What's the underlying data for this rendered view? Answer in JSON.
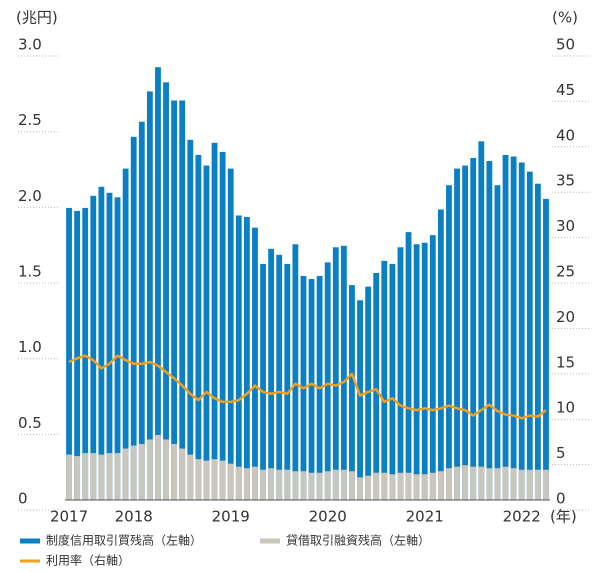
{
  "chart_data": {
    "type": "bar",
    "y_unit": "(兆円)",
    "y2_unit": "(%)",
    "x_unit": "(年)",
    "categories": [
      "2017",
      null,
      null,
      null,
      null,
      null,
      null,
      null,
      "2018",
      null,
      null,
      null,
      null,
      null,
      null,
      null,
      null,
      null,
      null,
      null,
      "2019",
      null,
      null,
      null,
      null,
      null,
      null,
      null,
      null,
      null,
      null,
      null,
      "2020",
      null,
      null,
      null,
      null,
      null,
      null,
      null,
      null,
      null,
      null,
      null,
      "2021",
      null,
      null,
      null,
      null,
      null,
      null,
      null,
      null,
      null,
      null,
      null,
      "2022",
      null,
      null,
      null
    ],
    "series": [
      {
        "name": "制度信用取引買残高（左軸）",
        "color": "#0b7fc3",
        "values": [
          1.93,
          1.91,
          1.93,
          2.01,
          2.07,
          2.03,
          2.0,
          2.19,
          2.4,
          2.5,
          2.7,
          2.86,
          2.76,
          2.64,
          2.64,
          2.38,
          2.28,
          2.21,
          2.36,
          2.3,
          2.19,
          1.88,
          1.87,
          1.8,
          1.56,
          1.66,
          1.62,
          1.56,
          1.69,
          1.48,
          1.46,
          1.48,
          1.57,
          1.67,
          1.68,
          1.42,
          1.32,
          1.41,
          1.5,
          1.58,
          1.56,
          1.67,
          1.77,
          1.69,
          1.7,
          1.75,
          1.92,
          2.08,
          2.19,
          2.21,
          2.26,
          2.37,
          2.24,
          2.08,
          2.28,
          2.27,
          2.23,
          2.17,
          2.09,
          1.99
        ]
      },
      {
        "name": "貸借取引融資残高（左軸）",
        "color": "#c9c7bd",
        "values": [
          0.3,
          0.29,
          0.31,
          0.31,
          0.3,
          0.31,
          0.31,
          0.34,
          0.36,
          0.37,
          0.4,
          0.43,
          0.4,
          0.37,
          0.34,
          0.3,
          0.27,
          0.26,
          0.27,
          0.26,
          0.24,
          0.22,
          0.21,
          0.22,
          0.2,
          0.21,
          0.2,
          0.2,
          0.19,
          0.19,
          0.18,
          0.18,
          0.19,
          0.2,
          0.2,
          0.19,
          0.15,
          0.16,
          0.18,
          0.18,
          0.17,
          0.18,
          0.18,
          0.17,
          0.17,
          0.18,
          0.19,
          0.21,
          0.22,
          0.23,
          0.22,
          0.22,
          0.21,
          0.21,
          0.22,
          0.21,
          0.2,
          0.2,
          0.2,
          0.2
        ]
      },
      {
        "name": "利用率（右軸）",
        "color": "#f0a020",
        "type": "line",
        "axis": "y2",
        "values": [
          15.2,
          15.6,
          15.9,
          15.4,
          14.5,
          15.0,
          15.9,
          15.4,
          15.0,
          15.0,
          15.2,
          14.8,
          14.1,
          13.4,
          12.6,
          11.7,
          11.0,
          11.9,
          11.2,
          10.8,
          10.8,
          11.0,
          11.7,
          12.6,
          11.9,
          11.7,
          11.9,
          11.7,
          12.8,
          12.3,
          12.8,
          12.3,
          12.8,
          12.6,
          13.0,
          13.9,
          11.5,
          11.9,
          12.2,
          10.8,
          11.2,
          10.4,
          10.1,
          9.9,
          10.1,
          9.9,
          10.1,
          10.4,
          10.1,
          9.9,
          9.3,
          9.9,
          10.5,
          9.8,
          9.4,
          9.3,
          9.0,
          9.3,
          9.2,
          9.9
        ]
      }
    ],
    "ylim": [
      0,
      3
    ],
    "yticks": [
      0,
      0.5,
      {
        "value": 1,
        "label": "1.0"
      },
      1.5,
      {
        "value": 2,
        "label": "2.0"
      },
      2.5,
      {
        "value": 3,
        "label": "3.0"
      }
    ],
    "y2lim": [
      0,
      50
    ],
    "y2ticks": [
      0,
      5,
      10,
      15,
      20,
      25,
      30,
      35,
      40,
      45,
      50
    ]
  }
}
